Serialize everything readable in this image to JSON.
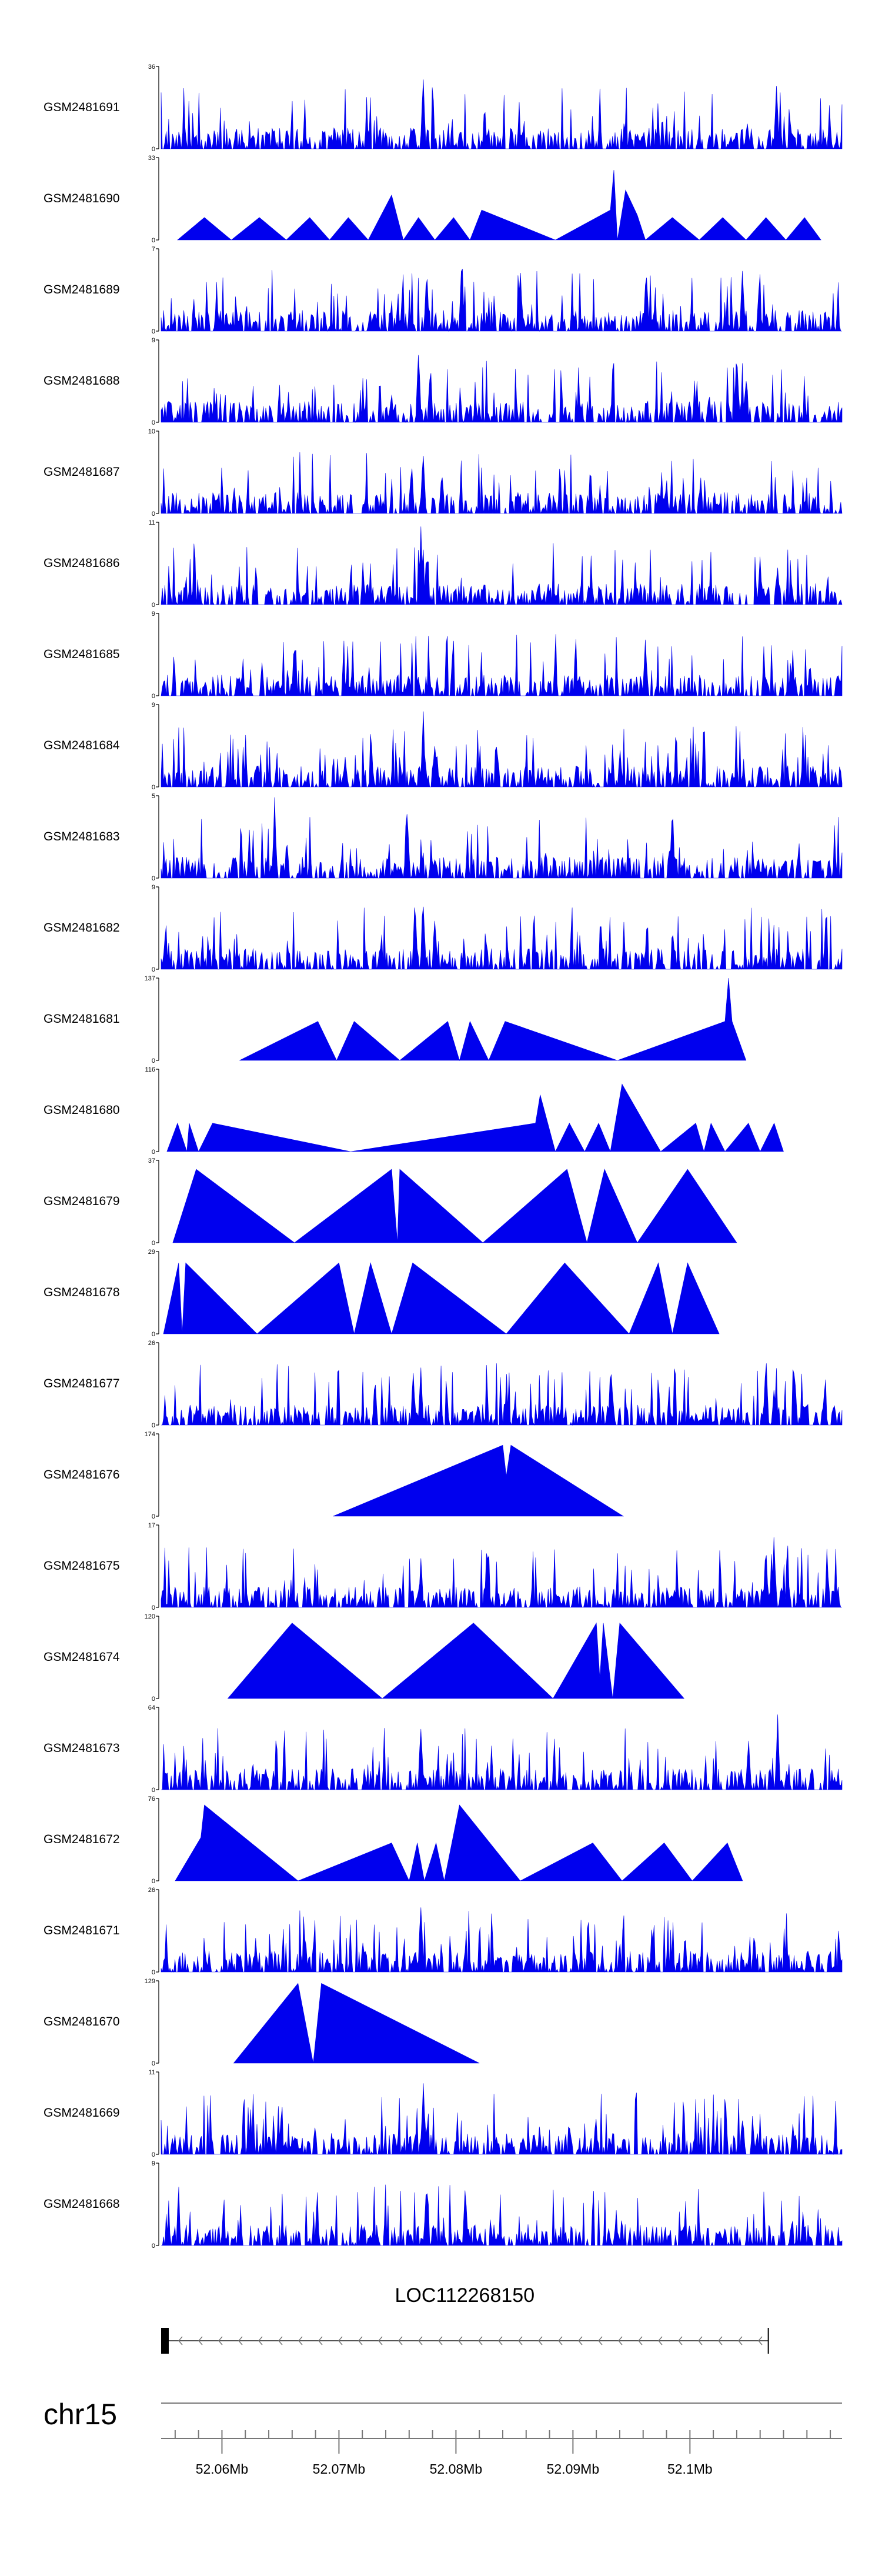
{
  "chart_data": {
    "type": "area",
    "colors": {
      "signal": "#0000ee",
      "gene": "#000000",
      "ideogram": "#777777"
    },
    "tracks": [
      {
        "name": "GSM2481691",
        "ymax": 36,
        "ymin": 0,
        "style": "dense",
        "seed": 11,
        "peaks": [
          [
            52.0772,
            36
          ],
          [
            52.1049,
            14
          ],
          [
            52.1074,
            34
          ],
          [
            52.1086,
            10
          ]
        ]
      },
      {
        "name": "GSM2481690",
        "ymax": 33,
        "ymin": 0,
        "style": "tri",
        "seed": 12,
        "verts": [
          [
            52.0562,
            0
          ],
          [
            52.0585,
            9
          ],
          [
            52.0608,
            0
          ],
          [
            52.0632,
            9
          ],
          [
            52.0655,
            0
          ],
          [
            52.0675,
            9
          ],
          [
            52.0692,
            0
          ],
          [
            52.0708,
            9
          ],
          [
            52.0725,
            0
          ],
          [
            52.0745,
            18
          ],
          [
            52.0755,
            0
          ],
          [
            52.0768,
            9
          ],
          [
            52.0782,
            0
          ],
          [
            52.0798,
            9
          ],
          [
            52.0812,
            0
          ],
          [
            52.0822,
            12
          ],
          [
            52.0885,
            0
          ],
          [
            52.0932,
            12
          ],
          [
            52.0935,
            28
          ],
          [
            52.0938,
            0
          ],
          [
            52.0945,
            20
          ],
          [
            52.0955,
            10
          ],
          [
            52.0962,
            0
          ],
          [
            52.0985,
            9
          ],
          [
            52.1008,
            0
          ],
          [
            52.1028,
            9
          ],
          [
            52.1048,
            0
          ],
          [
            52.1065,
            9
          ],
          [
            52.1082,
            0
          ],
          [
            52.1098,
            9
          ],
          [
            52.1112,
            0
          ]
        ]
      },
      {
        "name": "GSM2481689",
        "ymax": 7,
        "ymin": 0,
        "style": "dense",
        "seed": 13,
        "peaks": [
          [
            52.0775,
            6
          ],
          [
            52.0805,
            7
          ],
          [
            52.0855,
            6
          ],
          [
            52.1045,
            6
          ]
        ]
      },
      {
        "name": "GSM2481688",
        "ymax": 9,
        "ymin": 0,
        "style": "dense",
        "seed": 14,
        "peaks": [
          [
            52.0768,
            9
          ],
          [
            52.0778,
            7
          ],
          [
            52.104,
            9
          ],
          [
            52.1048,
            6
          ]
        ]
      },
      {
        "name": "GSM2481687",
        "ymax": 10,
        "ymin": 0,
        "style": "dense",
        "seed": 15,
        "peaks": [
          [
            52.0772,
            10
          ],
          [
            52.0762,
            7
          ],
          [
            52.0788,
            6
          ]
        ]
      },
      {
        "name": "GSM2481686",
        "ymax": 11,
        "ymin": 0,
        "style": "dense",
        "seed": 16,
        "peaks": [
          [
            52.077,
            11
          ],
          [
            52.0775,
            8
          ],
          [
            52.106,
            7
          ],
          [
            52.1075,
            6
          ]
        ]
      },
      {
        "name": "GSM2481685",
        "ymax": 9,
        "ymin": 0,
        "style": "dense",
        "seed": 17,
        "peaks": [
          [
            52.0662,
            7
          ],
          [
            52.0962,
            7
          ]
        ]
      },
      {
        "name": "GSM2481684",
        "ymax": 9,
        "ymin": 0,
        "style": "dense",
        "seed": 18,
        "peaks": [
          [
            52.0772,
            9
          ],
          [
            52.0782,
            6
          ],
          [
            52.0835,
            5
          ]
        ]
      },
      {
        "name": "GSM2481683",
        "ymax": 5,
        "ymin": 0,
        "style": "dense",
        "seed": 19,
        "peaks": [
          [
            52.0645,
            5
          ],
          [
            52.0758,
            5
          ],
          [
            52.0985,
            5
          ]
        ]
      },
      {
        "name": "GSM2481682",
        "ymax": 9,
        "ymin": 0,
        "style": "dense",
        "seed": 20,
        "peaks": [
          [
            52.0765,
            9
          ],
          [
            52.0772,
            9
          ],
          [
            52.0782,
            7
          ]
        ]
      },
      {
        "name": "GSM2481681",
        "ymax": 137,
        "ymin": 0,
        "style": "tri",
        "seed": 21,
        "verts": [
          [
            52.0615,
            0
          ],
          [
            52.0682,
            65
          ],
          [
            52.0698,
            0
          ],
          [
            52.0713,
            65
          ],
          [
            52.0752,
            0
          ],
          [
            52.0793,
            65
          ],
          [
            52.0803,
            0
          ],
          [
            52.0812,
            65
          ],
          [
            52.0828,
            0
          ],
          [
            52.0842,
            65
          ],
          [
            52.0938,
            0
          ],
          [
            52.103,
            65
          ],
          [
            52.1033,
            137
          ],
          [
            52.1036,
            65
          ],
          [
            52.1048,
            0
          ]
        ]
      },
      {
        "name": "GSM2481680",
        "ymax": 116,
        "ymin": 0,
        "style": "tri",
        "seed": 22,
        "verts": [
          [
            52.0553,
            0
          ],
          [
            52.0562,
            40
          ],
          [
            52.057,
            0
          ],
          [
            52.0572,
            40
          ],
          [
            52.058,
            0
          ],
          [
            52.0592,
            40
          ],
          [
            52.071,
            0
          ],
          [
            52.0868,
            40
          ],
          [
            52.0872,
            80
          ],
          [
            52.0885,
            0
          ],
          [
            52.0897,
            40
          ],
          [
            52.091,
            0
          ],
          [
            52.0922,
            40
          ],
          [
            52.0932,
            0
          ],
          [
            52.0942,
            95
          ],
          [
            52.0975,
            0
          ],
          [
            52.1005,
            40
          ],
          [
            52.1012,
            0
          ],
          [
            52.1018,
            40
          ],
          [
            52.103,
            0
          ],
          [
            52.105,
            40
          ],
          [
            52.106,
            0
          ],
          [
            52.1072,
            40
          ],
          [
            52.108,
            0
          ]
        ]
      },
      {
        "name": "GSM2481679",
        "ymax": 37,
        "ymin": 0,
        "style": "tri",
        "seed": 23,
        "verts": [
          [
            52.0558,
            0
          ],
          [
            52.0578,
            33
          ],
          [
            52.0662,
            0
          ],
          [
            52.0745,
            33
          ],
          [
            52.075,
            0
          ],
          [
            52.0752,
            33
          ],
          [
            52.0823,
            0
          ],
          [
            52.0895,
            33
          ],
          [
            52.0912,
            0
          ],
          [
            52.0927,
            33
          ],
          [
            52.0955,
            0
          ],
          [
            52.0998,
            33
          ],
          [
            52.104,
            0
          ]
        ]
      },
      {
        "name": "GSM2481678",
        "ymax": 29,
        "ymin": 0,
        "style": "tri",
        "seed": 24,
        "verts": [
          [
            52.055,
            0
          ],
          [
            52.0563,
            25
          ],
          [
            52.0566,
            0
          ],
          [
            52.0569,
            25
          ],
          [
            52.063,
            0
          ],
          [
            52.07,
            25
          ],
          [
            52.0713,
            0
          ],
          [
            52.0727,
            25
          ],
          [
            52.0745,
            0
          ],
          [
            52.0763,
            25
          ],
          [
            52.0843,
            0
          ],
          [
            52.0893,
            25
          ],
          [
            52.0948,
            0
          ],
          [
            52.0973,
            25
          ],
          [
            52.0985,
            0
          ],
          [
            52.0998,
            25
          ],
          [
            52.1025,
            0
          ]
        ]
      },
      {
        "name": "GSM2481677",
        "ymax": 26,
        "ymin": 0,
        "style": "dense",
        "seed": 25,
        "peaks": [
          [
            52.077,
            19
          ],
          [
            52.0843,
            10
          ],
          [
            52.1065,
            24
          ],
          [
            52.1072,
            14
          ],
          [
            52.1115,
            12
          ]
        ]
      },
      {
        "name": "GSM2481676",
        "ymax": 174,
        "ymin": 0,
        "style": "tri",
        "seed": 26,
        "verts": [
          [
            52.0695,
            0
          ],
          [
            52.084,
            150
          ],
          [
            52.0843,
            85
          ],
          [
            52.0847,
            150
          ],
          [
            52.0943,
            0
          ]
        ]
      },
      {
        "name": "GSM2481675",
        "ymax": 17,
        "ymin": 0,
        "style": "dense",
        "seed": 27,
        "peaks": [
          [
            52.077,
            11
          ],
          [
            52.1065,
            14
          ],
          [
            52.1072,
            16
          ]
        ]
      },
      {
        "name": "GSM2481674",
        "ymax": 120,
        "ymin": 0,
        "style": "tri",
        "seed": 28,
        "verts": [
          [
            52.0605,
            0
          ],
          [
            52.066,
            110
          ],
          [
            52.0737,
            0
          ],
          [
            52.0815,
            110
          ],
          [
            52.0883,
            0
          ],
          [
            52.092,
            110
          ],
          [
            52.0923,
            30
          ],
          [
            52.0926,
            110
          ],
          [
            52.0934,
            0
          ],
          [
            52.094,
            110
          ],
          [
            52.0995,
            0
          ]
        ]
      },
      {
        "name": "GSM2481673",
        "ymax": 64,
        "ymin": 0,
        "style": "dense",
        "seed": 29,
        "peaks": [
          [
            52.077,
            60
          ],
          [
            52.105,
            45
          ],
          [
            52.1075,
            64
          ]
        ]
      },
      {
        "name": "GSM2481672",
        "ymax": 76,
        "ymin": 0,
        "style": "tri",
        "seed": 30,
        "verts": [
          [
            52.056,
            0
          ],
          [
            52.0582,
            40
          ],
          [
            52.0585,
            70
          ],
          [
            52.0665,
            0
          ],
          [
            52.0745,
            35
          ],
          [
            52.076,
            0
          ],
          [
            52.0767,
            35
          ],
          [
            52.0773,
            0
          ],
          [
            52.0783,
            35
          ],
          [
            52.079,
            0
          ],
          [
            52.0803,
            70
          ],
          [
            52.0855,
            0
          ],
          [
            52.0917,
            35
          ],
          [
            52.0942,
            0
          ],
          [
            52.0978,
            35
          ],
          [
            52.1002,
            0
          ],
          [
            52.1032,
            35
          ],
          [
            52.1045,
            0
          ]
        ]
      },
      {
        "name": "GSM2481671",
        "ymax": 26,
        "ymin": 0,
        "style": "dense",
        "seed": 31,
        "peaks": [
          [
            52.077,
            26
          ],
          [
            52.1055,
            14
          ]
        ]
      },
      {
        "name": "GSM2481670",
        "ymax": 129,
        "ymin": 0,
        "style": "tri",
        "seed": 32,
        "verts": [
          [
            52.061,
            0
          ],
          [
            52.0665,
            125
          ],
          [
            52.0678,
            0
          ],
          [
            52.0685,
            125
          ],
          [
            52.082,
            0
          ]
        ]
      },
      {
        "name": "GSM2481669",
        "ymax": 11,
        "ymin": 0,
        "style": "dense",
        "seed": 33,
        "peaks": [
          [
            52.0772,
            11
          ],
          [
            52.1045,
            6
          ]
        ]
      },
      {
        "name": "GSM2481668",
        "ymax": 9,
        "ymin": 0,
        "style": "dense",
        "seed": 34,
        "peaks": [
          [
            52.0775,
            9
          ],
          [
            52.0808,
            8
          ]
        ]
      }
    ],
    "x_range": [
      52.0548,
      52.113
    ],
    "x_unit": "Mb",
    "gene": {
      "name": "LOC112268150",
      "start": 52.0548,
      "end": 52.1067,
      "strand": "-"
    },
    "chromosome": "chr15",
    "x_ticks": [
      {
        "value": 52.06,
        "label": "52.06Mb"
      },
      {
        "value": 52.07,
        "label": "52.07Mb"
      },
      {
        "value": 52.08,
        "label": "52.08Mb"
      },
      {
        "value": 52.09,
        "label": "52.09Mb"
      },
      {
        "value": 52.1,
        "label": "52.1Mb"
      }
    ],
    "minor_tick_step": 0.002
  }
}
